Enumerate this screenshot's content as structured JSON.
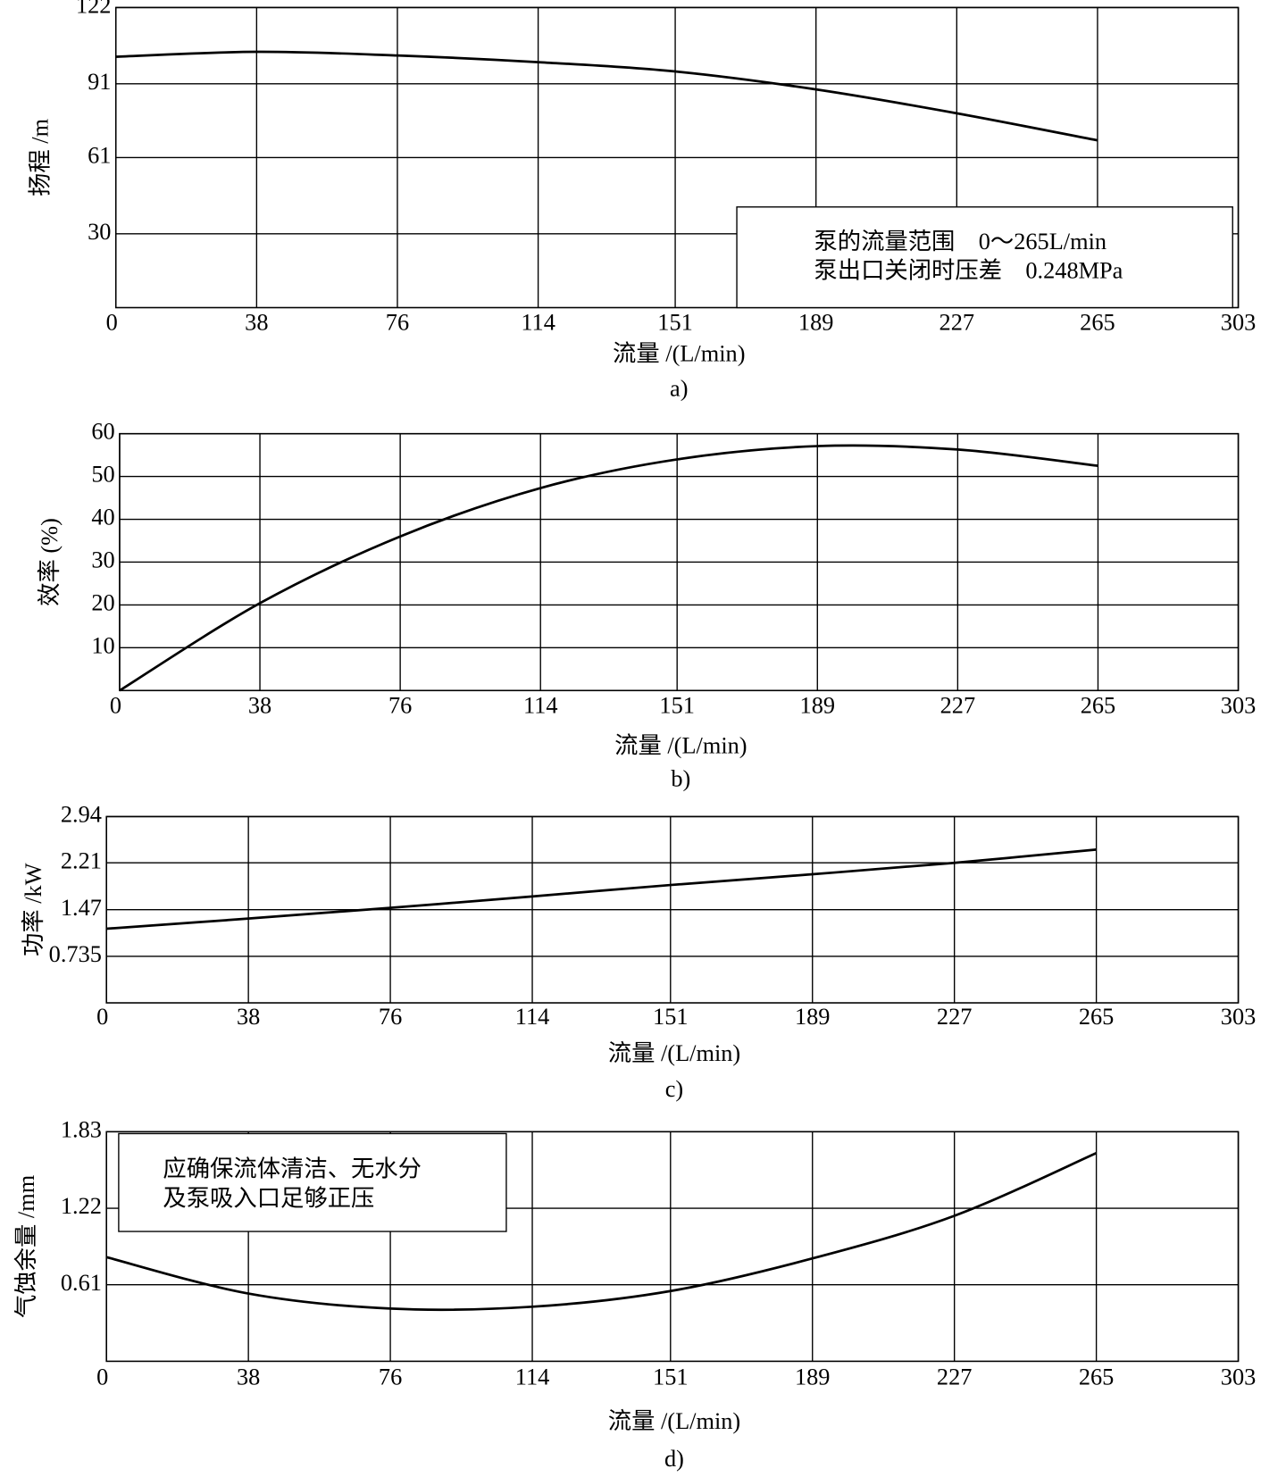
{
  "chart_data": [
    {
      "type": "line",
      "x_label": "流量 /(L/min)",
      "y_label": "扬程 /m",
      "caption": "a)",
      "x": [
        0,
        38,
        76,
        114,
        151,
        189,
        227,
        265
      ],
      "values": [
        102,
        104,
        102.5,
        99.8,
        96,
        88.7,
        79,
        68
      ],
      "color": "#000000",
      "xlim": [
        0,
        303
      ],
      "xticks": [
        0,
        38,
        76,
        114,
        151,
        189,
        227,
        265,
        303
      ],
      "ylim": [
        0,
        122
      ],
      "yticks": [
        30,
        61,
        91,
        122
      ],
      "grid": true,
      "annotation": [
        "泵的流量范围　0～265L/min",
        "泵出口关闭时压差　0.248MPa"
      ],
      "annotation_corner": "lower right"
    },
    {
      "type": "line",
      "x_label": "流量 /(L/min)",
      "y_label": "效率 (%)",
      "caption": "b)",
      "x": [
        0,
        38,
        76,
        114,
        151,
        189,
        227,
        265
      ],
      "values": [
        0,
        20.4,
        36,
        47.3,
        54,
        57.1,
        56.3,
        52.5
      ],
      "color": "#000000",
      "xlim": [
        0,
        303
      ],
      "xticks": [
        0,
        38,
        76,
        114,
        151,
        189,
        227,
        265,
        303
      ],
      "ylim": [
        0,
        60
      ],
      "yticks": [
        10,
        20,
        30,
        40,
        50,
        60
      ],
      "grid": true
    },
    {
      "type": "line",
      "x_label": "流量 /(L/min)",
      "y_label": "功率 /kW",
      "caption": "c)",
      "x": [
        0,
        38,
        76,
        114,
        151,
        189,
        227,
        265
      ],
      "values": [
        1.17,
        1.33,
        1.5,
        1.68,
        1.86,
        2.03,
        2.21,
        2.42
      ],
      "color": "#000000",
      "xlim": [
        0,
        303
      ],
      "xticks": [
        0,
        38,
        76,
        114,
        151,
        189,
        227,
        265,
        303
      ],
      "ylim": [
        0,
        2.94
      ],
      "yticks": [
        0.735,
        1.47,
        2.21,
        2.94
      ],
      "grid": true
    },
    {
      "type": "line",
      "x_label": "流量 /(L/min)",
      "y_label": "气蚀余量 /mm",
      "caption": "d)",
      "x": [
        0,
        38,
        76,
        114,
        151,
        189,
        227,
        265
      ],
      "values": [
        0.83,
        0.54,
        0.42,
        0.435,
        0.56,
        0.82,
        1.16,
        1.66
      ],
      "color": "#000000",
      "xlim": [
        0,
        303
      ],
      "xticks": [
        0,
        38,
        76,
        114,
        151,
        189,
        227,
        265,
        303
      ],
      "ylim": [
        0,
        1.83
      ],
      "yticks": [
        0.61,
        1.22,
        1.83
      ],
      "grid": true,
      "annotation": [
        "应确保流体清洁、无水分",
        "及泵吸入口足够正压"
      ],
      "annotation_corner": "upper left"
    }
  ]
}
